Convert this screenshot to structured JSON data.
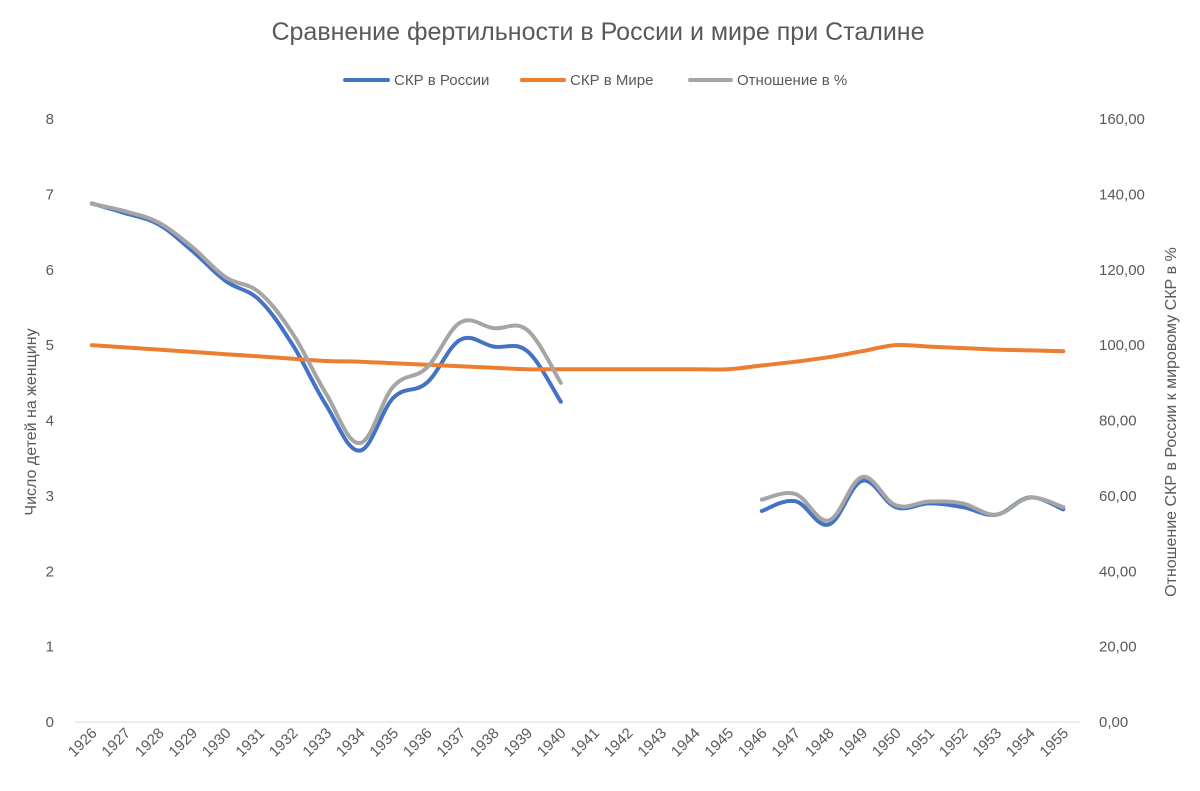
{
  "chart_data": {
    "type": "line",
    "title": "Сравнение фертильности в России и мире при Сталине",
    "ylabel": "Число детей на женщину",
    "y2label": "Отношение СКР в России  к мировому СКР в %",
    "xlabel": "",
    "ylim": [
      0,
      8
    ],
    "y2lim": [
      0,
      160
    ],
    "y_ticks": [
      "0",
      "1",
      "2",
      "3",
      "4",
      "5",
      "6",
      "7",
      "8"
    ],
    "y2_ticks": [
      "0,00",
      "20,00",
      "40,00",
      "60,00",
      "80,00",
      "100,00",
      "120,00",
      "140,00",
      "160,00"
    ],
    "legend_position": "top",
    "grid": false,
    "categories": [
      "1926",
      "1927",
      "1928",
      "1929",
      "1930",
      "1931",
      "1932",
      "1933",
      "1934",
      "1935",
      "1936",
      "1937",
      "1938",
      "1939",
      "1940",
      "1941",
      "1942",
      "1943",
      "1944",
      "1945",
      "1946",
      "1947",
      "1948",
      "1949",
      "1950",
      "1951",
      "1952",
      "1953",
      "1954",
      "1955"
    ],
    "series": [
      {
        "name": "СКР в России",
        "axis": "left",
        "color": "#4472C4",
        "values": [
          6.88,
          6.75,
          6.6,
          6.25,
          5.85,
          5.6,
          5.0,
          4.2,
          3.6,
          4.3,
          4.5,
          5.07,
          4.98,
          4.92,
          4.25,
          null,
          null,
          null,
          null,
          null,
          2.8,
          2.93,
          2.62,
          3.2,
          2.85,
          2.9,
          2.85,
          2.75,
          2.98,
          2.82
        ]
      },
      {
        "name": "СКР в Мире",
        "axis": "left",
        "color": "#ED7D31",
        "values": [
          5.0,
          4.97,
          4.94,
          4.91,
          4.88,
          4.85,
          4.82,
          4.79,
          4.78,
          4.76,
          4.74,
          4.72,
          4.7,
          4.68,
          4.68,
          4.68,
          4.68,
          4.68,
          4.68,
          4.68,
          4.73,
          4.78,
          4.84,
          4.92,
          5.0,
          4.98,
          4.96,
          4.94,
          4.93,
          4.92
        ]
      },
      {
        "name": "Отношение в %",
        "axis": "right",
        "color": "#A5A5A5",
        "values": [
          137.5,
          135.5,
          132.5,
          126.0,
          118.0,
          114.0,
          103.0,
          87.0,
          74.0,
          89.0,
          94.0,
          106.0,
          104.5,
          104.0,
          90.0,
          null,
          null,
          null,
          null,
          null,
          59.0,
          60.5,
          53.5,
          65.0,
          57.5,
          58.5,
          58.0,
          55.0,
          59.5,
          57.0
        ]
      }
    ]
  }
}
